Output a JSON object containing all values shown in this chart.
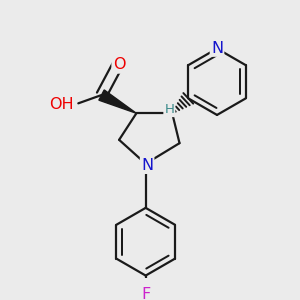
{
  "bg_color": "#ebebeb",
  "bond_color": "#1a1a1a",
  "bond_width": 1.6,
  "atom_colors": {
    "O": "#ee0000",
    "N": "#1414cc",
    "F": "#cc22cc",
    "H": "#3a8a8a",
    "C": "#1a1a1a"
  },
  "font_size": 11.5,
  "font_size_H": 9.5
}
